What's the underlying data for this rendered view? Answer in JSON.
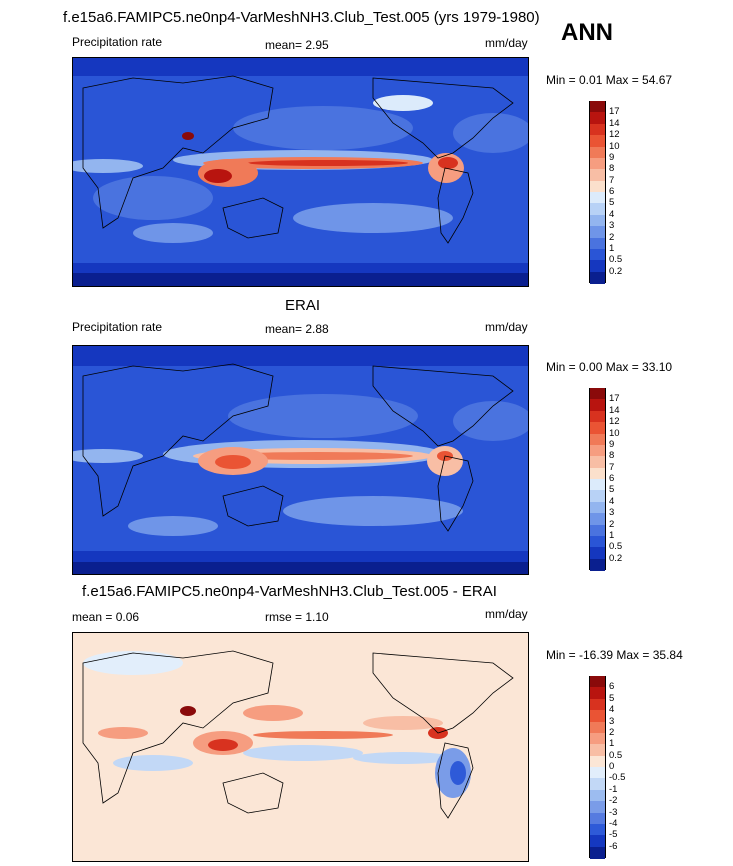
{
  "header": {
    "title": "f.e15a6.FAMIPC5.ne0np4-VarMeshNH3.Club_Test.005 (yrs 1979-1980)",
    "season": "ANN"
  },
  "panels": [
    {
      "id": "model",
      "heading": "",
      "left_label": "Precipitation rate",
      "center_label": "mean=   2.95",
      "right_label": "mm/day",
      "minmax": "Min =   0.01 Max =  54.67",
      "colorbar": {
        "labels": [
          "17",
          "14",
          "12",
          "10",
          "9",
          "8",
          "7",
          "6",
          "5",
          "4",
          "3",
          "2",
          "1",
          "0.5",
          "0.2"
        ],
        "colors": [
          "#8a0a0a",
          "#b8140f",
          "#d8321f",
          "#ea5434",
          "#f07a58",
          "#f69d80",
          "#f8bea5",
          "#fbe0cc",
          "#dcebfb",
          "#b8d2f6",
          "#93b5ef",
          "#6f95e8",
          "#4a73df",
          "#2a55d6",
          "#1537bf",
          "#0a1f8f"
        ]
      }
    },
    {
      "id": "obs",
      "heading": "ERAI",
      "left_label": "Precipitation rate",
      "center_label": "mean=   2.88",
      "right_label": "mm/day",
      "minmax": "Min =   0.00 Max =  33.10",
      "colorbar": {
        "labels": [
          "17",
          "14",
          "12",
          "10",
          "9",
          "8",
          "7",
          "6",
          "5",
          "4",
          "3",
          "2",
          "1",
          "0.5",
          "0.2"
        ],
        "colors": [
          "#8a0a0a",
          "#b8140f",
          "#d8321f",
          "#ea5434",
          "#f07a58",
          "#f69d80",
          "#f8bea5",
          "#fbe0cc",
          "#dcebfb",
          "#b8d2f6",
          "#93b5ef",
          "#6f95e8",
          "#4a73df",
          "#2a55d6",
          "#1537bf",
          "#0a1f8f"
        ]
      }
    },
    {
      "id": "diff",
      "heading": "f.e15a6.FAMIPC5.ne0np4-VarMeshNH3.Club_Test.005 - ERAI",
      "left_label": "mean =   0.06",
      "center_label": "rmse =   1.10",
      "right_label": "mm/day",
      "minmax": "Min = -16.39 Max =  35.84",
      "colorbar": {
        "labels": [
          "6",
          "5",
          "4",
          "3",
          "2",
          "1",
          "0.5",
          "0",
          "-0.5",
          "-1",
          "-2",
          "-3",
          "-4",
          "-5",
          "-6"
        ],
        "colors": [
          "#8a0a0a",
          "#b8140f",
          "#d8321f",
          "#ea5434",
          "#f07a58",
          "#f69d80",
          "#f8bea5",
          "#fbe6d6",
          "#e2eefb",
          "#c2d8f6",
          "#9cbcf0",
          "#7a9ce8",
          "#567be0",
          "#2e5ad8",
          "#1538c0",
          "#0a1f8f"
        ]
      }
    }
  ]
}
